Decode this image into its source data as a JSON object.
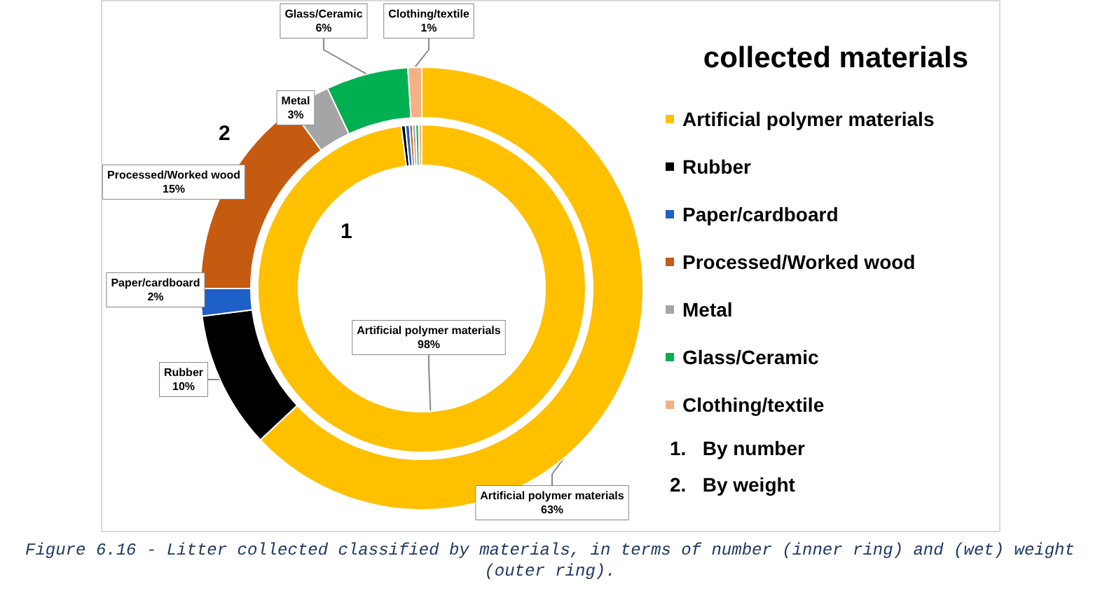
{
  "chart_data": {
    "type": "donut",
    "title": "collected materials",
    "categories": [
      "Artificial polymer materials",
      "Rubber",
      "Paper/cardboard",
      "Processed/Worked wood",
      "Metal",
      "Glass/Ceramic",
      "Clothing/textile"
    ],
    "colors": [
      "#ffc000",
      "#000000",
      "#1f5fc8",
      "#c55a11",
      "#a5a5a5",
      "#00b050",
      "#f4b183"
    ],
    "series": [
      {
        "values": [
          98,
          0.4,
          0.4,
          0.3,
          0.3,
          0.3,
          0.3
        ],
        "value_labels": [
          "98%",
          null,
          null,
          null,
          null,
          null,
          null
        ]
      },
      {
        "values": [
          63,
          10,
          2,
          15,
          3,
          6,
          1
        ],
        "value_labels": [
          "63%",
          "10%",
          "2%",
          "15%",
          "3%",
          "6%",
          "1%"
        ]
      }
    ],
    "annotations": [
      "1",
      "2",
      "1.   By number",
      "2.   By weight",
      "Figure 6.16 - Litter collected classified by materials, in terms of number (inner ring) and (wet) weight (outer ring)."
    ],
    "legend": "right"
  }
}
